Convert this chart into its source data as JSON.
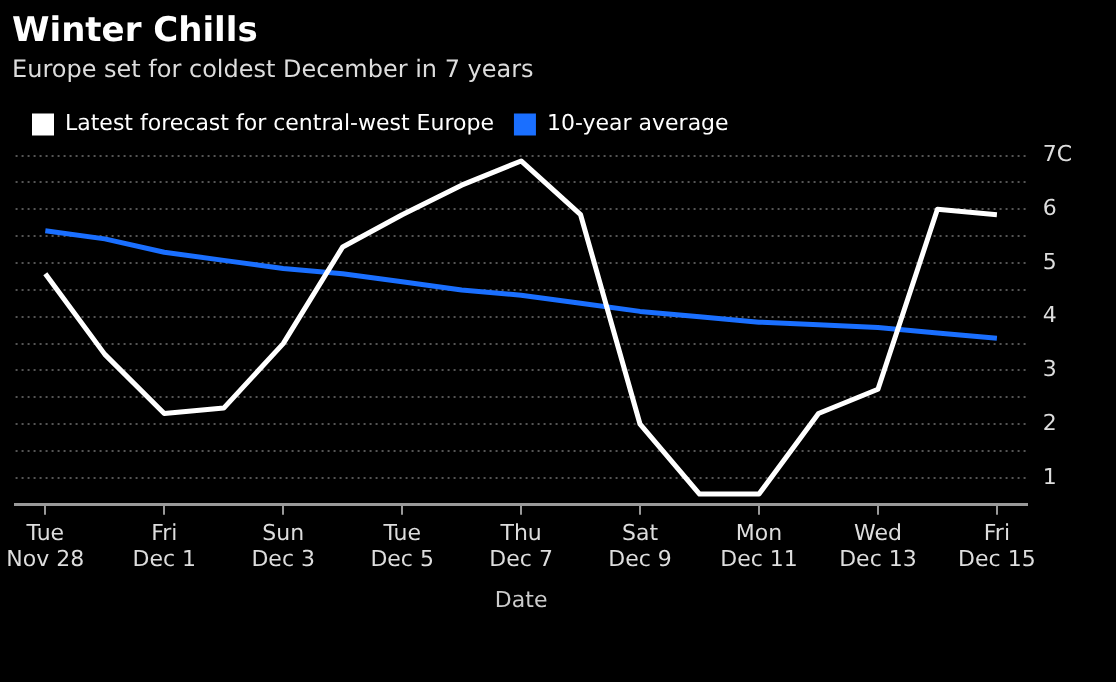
{
  "chart_data": {
    "type": "line",
    "title": "Winter Chills",
    "subtitle": "Europe set for coldest December in 7 years",
    "xlabel": "Date",
    "categories": [
      "Tue\nNov 28",
      null,
      "Fri\nDec 1",
      null,
      "Sun\nDec 3",
      null,
      "Tue\nDec 5",
      null,
      "Thu\nDec 7",
      null,
      "Sat\nDec 9",
      null,
      "Mon\nDec 11",
      null,
      "Wed\nDec 13",
      null,
      "Fri\nDec 15"
    ],
    "series": [
      {
        "name": "Latest forecast for central-west Europe",
        "color": "#ffffff",
        "values": [
          4.8,
          3.3,
          2.2,
          2.3,
          3.5,
          5.3,
          5.9,
          6.45,
          6.9,
          5.9,
          2.0,
          0.7,
          0.7,
          2.2,
          2.65,
          6.0,
          5.9
        ]
      },
      {
        "name": "10-year average",
        "color": "#1a6fff",
        "values": [
          5.6,
          5.45,
          5.2,
          5.05,
          4.9,
          4.8,
          4.65,
          4.5,
          4.4,
          4.25,
          4.1,
          4.0,
          3.9,
          3.85,
          3.8,
          3.7,
          3.6
        ]
      }
    ],
    "ylim": [
      0.5,
      7
    ],
    "yticks": [
      1,
      {
        "value": 1.5,
        "label": null
      },
      2,
      {
        "value": 2.5,
        "label": null
      },
      3,
      {
        "value": 3.5,
        "label": null
      },
      4,
      {
        "value": 4.5,
        "label": null
      },
      5,
      {
        "value": 5.5,
        "label": null
      },
      6,
      {
        "value": 6.5,
        "label": null
      },
      {
        "value": 7,
        "label": "7C"
      }
    ],
    "grid": "y",
    "legend": "top left",
    "marker": "none",
    "line_style": "solid"
  }
}
